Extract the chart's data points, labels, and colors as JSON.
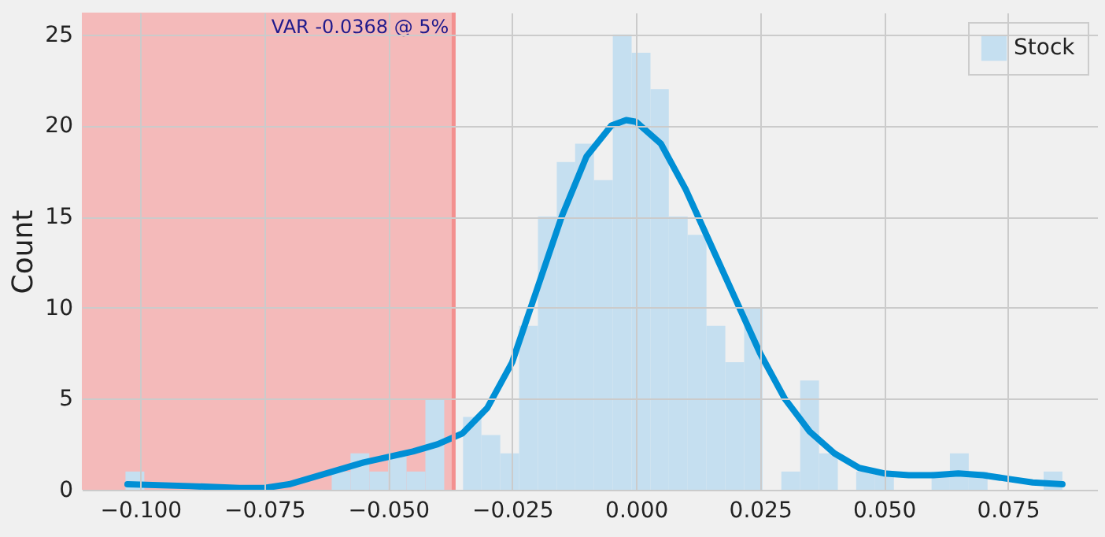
{
  "chart_data": {
    "type": "histogram",
    "ylabel": "Count",
    "bins": [
      -0.103,
      -0.0992,
      -0.0614,
      -0.0576,
      -0.0538,
      -0.05,
      -0.0463,
      -0.0425,
      -0.0387,
      -0.0349,
      -0.0312,
      -0.0274,
      -0.0236,
      -0.0198,
      -0.016,
      -0.0123,
      -0.0085,
      -0.0047,
      -0.0009,
      0.0029,
      0.0066,
      0.0104,
      0.0142,
      0.018,
      0.0218,
      0.0255,
      0.0293,
      0.0331,
      0.0369,
      0.0407,
      0.0444,
      0.0482,
      0.052,
      0.0596,
      0.0633,
      0.0671,
      0.0709,
      0.0822,
      0.086
    ],
    "series": [
      {
        "name": "Stock",
        "color": "#c5dff0",
        "values": [
          1,
          0,
          1,
          2,
          1,
          2,
          1,
          5,
          0,
          4,
          3,
          2,
          9,
          15,
          18,
          19,
          17,
          25,
          24,
          22,
          15,
          14,
          9,
          7,
          10,
          0,
          1,
          6,
          2,
          0,
          1,
          1,
          0,
          1,
          2,
          1,
          0,
          1
        ]
      },
      {
        "type": "line",
        "color": "#008fd5",
        "x": [
          -0.1026,
          -0.09,
          -0.08,
          -0.075,
          -0.07,
          -0.065,
          -0.06,
          -0.055,
          -0.05,
          -0.045,
          -0.04,
          -0.035,
          -0.03,
          -0.025,
          -0.02,
          -0.015,
          -0.01,
          -0.005,
          -0.002,
          0,
          0.005,
          0.01,
          0.015,
          0.02,
          0.025,
          0.03,
          0.035,
          0.04,
          0.045,
          0.05,
          0.055,
          0.06,
          0.065,
          0.07,
          0.075,
          0.08,
          0.086
        ],
        "values": [
          0.3,
          0.2,
          0.1,
          0.1,
          0.3,
          0.7,
          1.1,
          1.5,
          1.8,
          2.1,
          2.5,
          3.1,
          4.5,
          7,
          11,
          15,
          18.3,
          20,
          20.3,
          20.2,
          19,
          16.5,
          13.5,
          10.5,
          7.5,
          5,
          3.2,
          2,
          1.2,
          0.9,
          0.8,
          0.8,
          0.9,
          0.8,
          0.6,
          0.4,
          0.3
        ]
      }
    ],
    "xlim": [
      -0.1118,
      0.093
    ],
    "ylim": [
      0,
      26.2
    ],
    "xticks": [
      {
        "value": -0.1,
        "label": "−0.100"
      },
      {
        "value": -0.075,
        "label": "−0.075"
      },
      {
        "value": -0.05,
        "label": "−0.050"
      },
      {
        "value": -0.025,
        "label": "−0.025"
      },
      {
        "value": 0,
        "label": "0.000"
      },
      {
        "value": 0.025,
        "label": "0.025"
      },
      {
        "value": 0.05,
        "label": "0.050"
      },
      {
        "value": 0.075,
        "label": "0.075"
      }
    ],
    "yticks": [
      0,
      5,
      10,
      15,
      20,
      25
    ],
    "bands": [
      {
        "axis": "x",
        "from": -0.1118,
        "to": -0.0368,
        "color": "#f4baba"
      }
    ],
    "ref_lines": [
      {
        "axis": "x",
        "value": -0.0368,
        "label": "VAR -0.0368 @ 5%",
        "color": "#f3908f"
      }
    ],
    "grid": true,
    "legend": "top right"
  }
}
